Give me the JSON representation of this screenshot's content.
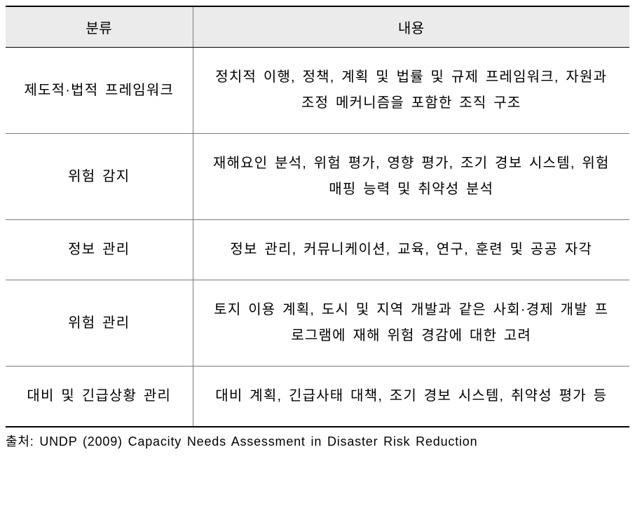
{
  "table": {
    "columns": [
      "분류",
      "내용"
    ],
    "column_widths": [
      "30%",
      "70%"
    ],
    "header_bg": "#ebebeb",
    "border_color": "#000000",
    "inner_border_color": "#7a7a7a",
    "background_color": "#ffffff",
    "font_family": "Malgun Gothic",
    "header_fontsize": 20,
    "body_fontsize": 20,
    "line_height": 1.85,
    "rows": [
      {
        "category": "제도적·법적 프레임워크",
        "content": "정치적 이행, 정책, 계획 및 법률 및 규제 프레임워크, 자원과 조정 메커니즘을 포함한 조직 구조"
      },
      {
        "category": "위험 감지",
        "content": "재해요인 분석, 위험 평가, 영향 평가, 조기 경보 시스템, 위험 매핑 능력 및 취약성 분석"
      },
      {
        "category": "정보 관리",
        "content": "정보 관리, 커뮤니케이션, 교육, 연구, 훈련 및 공공 자각"
      },
      {
        "category": "위험 관리",
        "content": "토지 이용 계획, 도시 및 지역 개발과 같은 사회·경제 개발 프로그램에 재해 위험 경감에 대한 고려"
      },
      {
        "category": "대비 및 긴급상황 관리",
        "content": "대비 계획, 긴급사태 대책, 조기 경보 시스템, 취약성 평가 등"
      }
    ]
  },
  "source": {
    "text": "출처: UNDP (2009) Capacity Needs Assessment in Disaster Risk Reduction",
    "fontsize": 18,
    "color": "#000000"
  }
}
